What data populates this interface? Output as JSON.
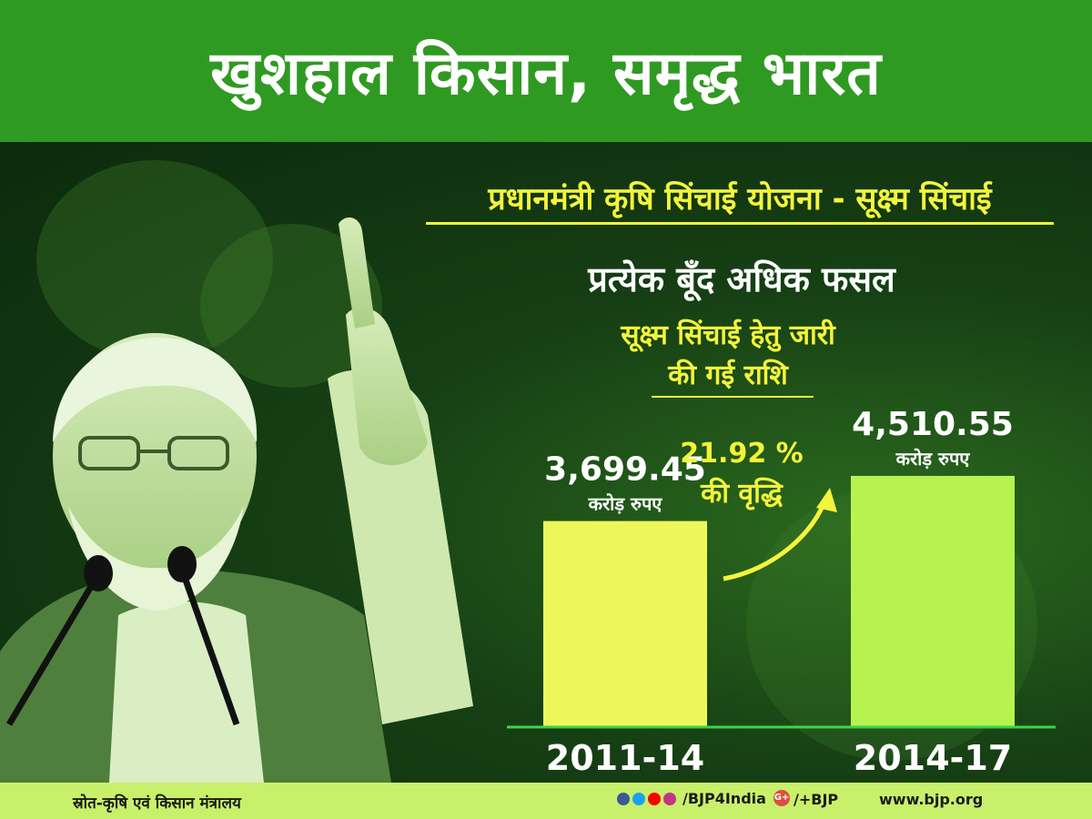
{
  "header": {
    "title": "खुशहाल किसान, समृद्ध भारत"
  },
  "scheme_title": "प्रधानमंत्री कृषि सिंचाई योजना - सूक्ष्म सिंचाई",
  "slogan": "प्रत्येक बूँद अधिक फसल",
  "subtitle": {
    "line1": "सूक्ष्म सिंचाई हेतु जारी",
    "line2": "की गई राशि"
  },
  "chart_data": {
    "type": "bar",
    "categories": [
      "2011-14",
      "2014-17"
    ],
    "values": [
      3699.45,
      4510.55
    ],
    "value_labels": [
      "3,699.45",
      "4,510.55"
    ],
    "unit_label": "करोड़ रुपए",
    "growth": {
      "percent": "21.92 %",
      "text": "की वृद्धि"
    },
    "bar_colors": [
      "#eef75a",
      "#b7f34f"
    ],
    "axis_color": "#3fd24a",
    "title": "",
    "xlabel": "",
    "ylabel": ""
  },
  "footer": {
    "source": "स्रोत-कृषि एवं किसान मंत्रालय",
    "handle": "/BJP4India",
    "gplus": "/+BJP",
    "website": "www.bjp.org"
  },
  "social_icons": [
    "facebook-icon",
    "twitter-icon",
    "youtube-icon",
    "instagram-icon",
    "google-plus-icon"
  ]
}
